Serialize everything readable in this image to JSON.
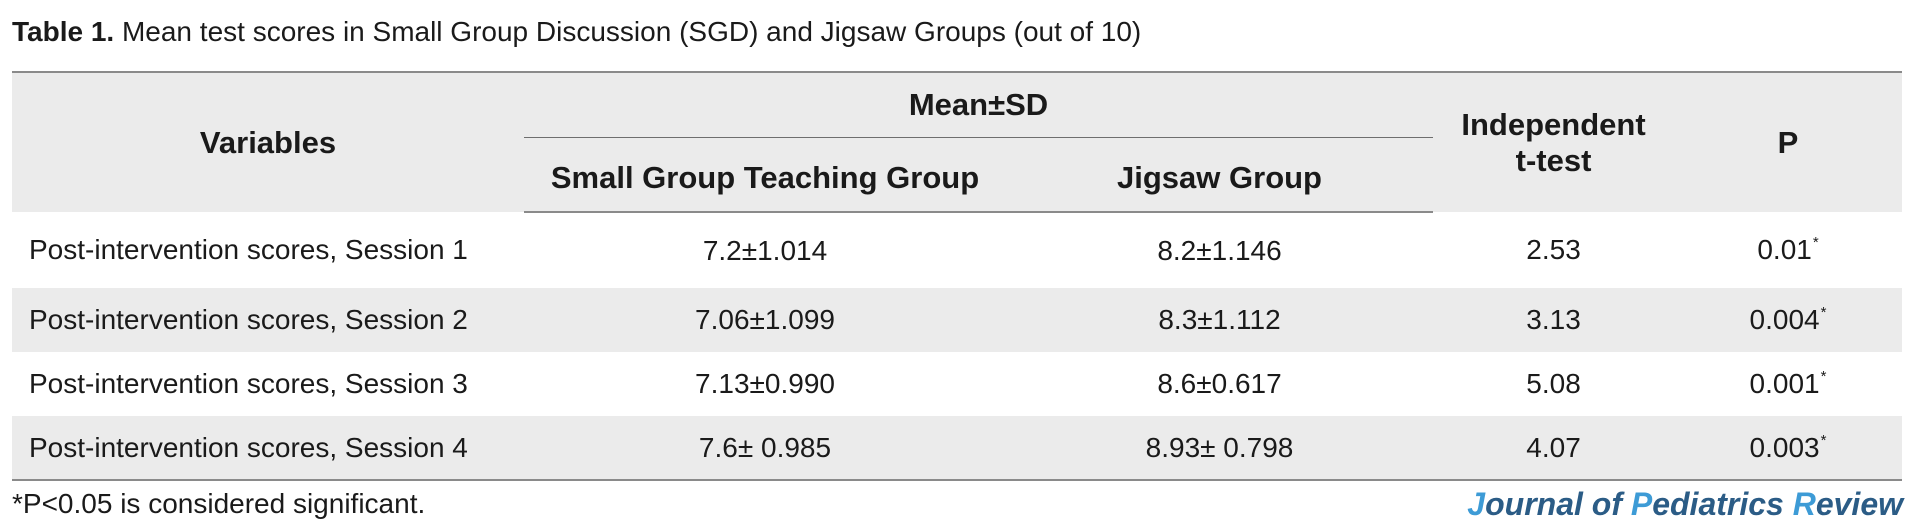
{
  "caption": {
    "label": "Table 1.",
    "text": " Mean test scores in Small Group Discussion (SGD) and Jigsaw Groups (out of 10)"
  },
  "table": {
    "headers": {
      "variables": "Variables",
      "mean_sd": "Mean±SD",
      "small_group": "Small Group Teaching Group",
      "jigsaw": "Jigsaw Group",
      "independent_1": "Independent",
      "independent_2": "t-test",
      "p": "P"
    },
    "rows": [
      {
        "variable": "Post-intervention scores, Session 1",
        "sgt": "7.2±1.014",
        "jigsaw": "8.2±1.146",
        "t": "2.53",
        "p": "0.01",
        "p_mark": "*"
      },
      {
        "variable": "Post-intervention scores, Session 2",
        "sgt": "7.06±1.099",
        "jigsaw": "8.3±1.112",
        "t": "3.13",
        "p": "0.004",
        "p_mark": "*"
      },
      {
        "variable": "Post-intervention scores, Session 3",
        "sgt": "7.13±0.990",
        "jigsaw": "8.6±0.617",
        "t": "5.08",
        "p": "0.001",
        "p_mark": "*"
      },
      {
        "variable": "Post-intervention scores, Session 4",
        "sgt": "7.6± 0.985",
        "jigsaw": "8.93± 0.798",
        "t": "4.07",
        "p": "0.003",
        "p_mark": "*"
      }
    ]
  },
  "footnote": "*P<0.05 is considered significant.",
  "journal": {
    "j": "J",
    "ournal": "ournal ",
    "of": "of ",
    "p": "P",
    "ediatrics": "ediatrics ",
    "r": "R",
    "eview": "eview"
  },
  "colors": {
    "header_bg": "#ebebeb",
    "journal_dark": "#2b5c86",
    "journal_light": "#3d9bd6"
  }
}
